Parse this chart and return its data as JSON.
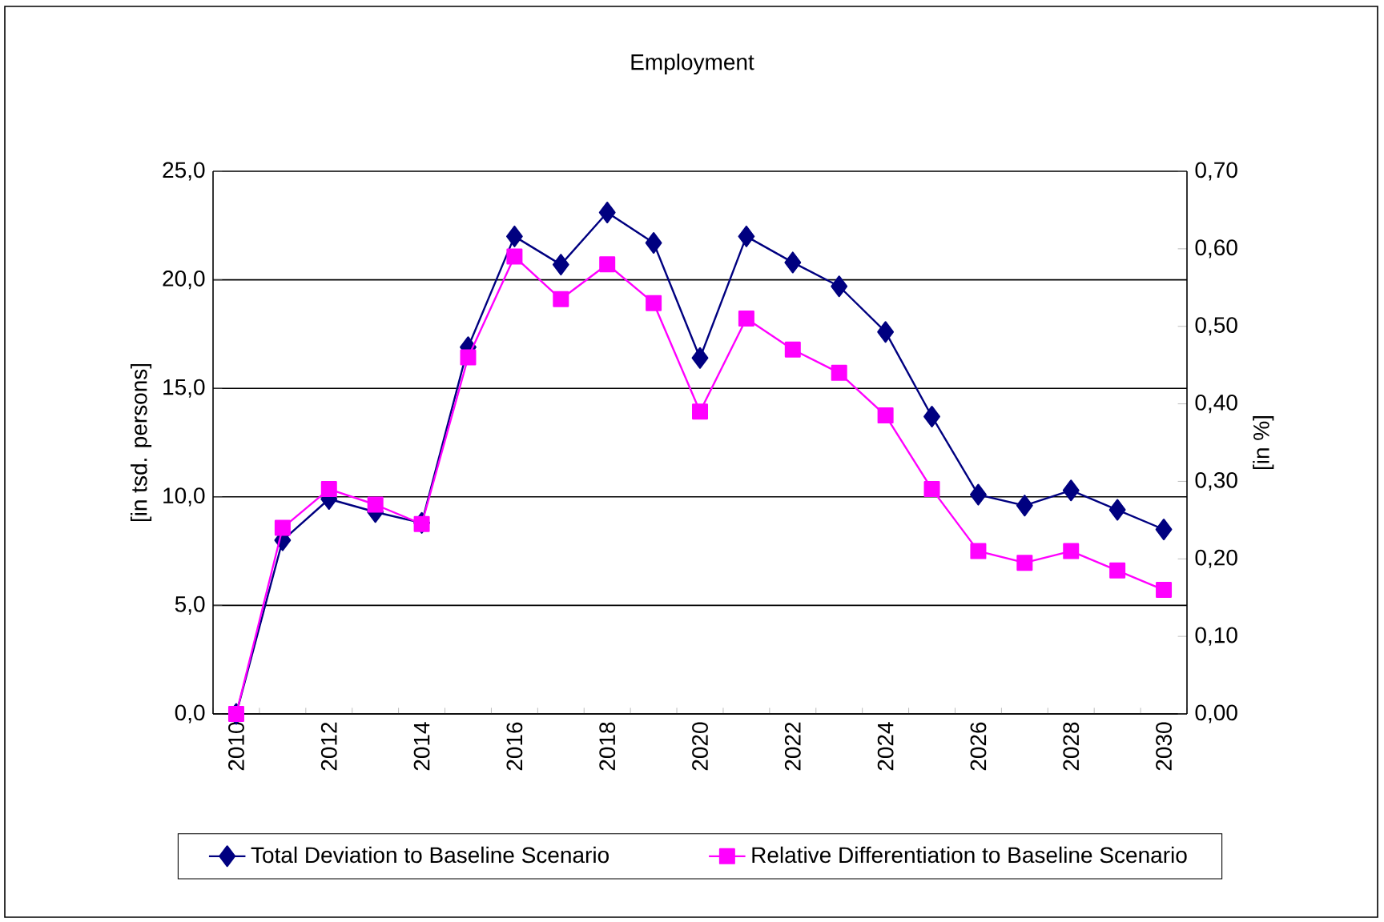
{
  "chart_data": {
    "type": "line",
    "title": "Employment",
    "ylabel": "[in tsd. persons]",
    "y2label": "[in %]",
    "categories": [
      "2010",
      null,
      "2012",
      null,
      "2014",
      null,
      "2016",
      null,
      "2018",
      null,
      "2020",
      null,
      "2022",
      null,
      "2024",
      null,
      "2026",
      null,
      "2028",
      null,
      "2030"
    ],
    "series": [
      {
        "name": "Total Deviation to Baseline Scenario",
        "color": "#000080",
        "marker": "diamond",
        "values": [
          0,
          8.0,
          9.9,
          9.3,
          8.8,
          16.9,
          22.0,
          20.7,
          23.1,
          21.7,
          16.4,
          22.0,
          20.8,
          19.7,
          17.6,
          13.7,
          10.1,
          9.6,
          10.3,
          9.4,
          8.5
        ]
      },
      {
        "name": "Relative Differentiation to Baseline Scenario",
        "color": "#ff00ff",
        "marker": "square",
        "axis": "y2",
        "values": [
          0,
          0.24,
          0.29,
          0.27,
          0.245,
          0.46,
          0.59,
          0.535,
          0.58,
          0.53,
          0.39,
          0.51,
          0.47,
          0.44,
          0.385,
          0.29,
          0.21,
          0.195,
          0.21,
          0.185,
          0.16
        ]
      }
    ],
    "ylim": [
      0,
      25
    ],
    "yticks": [
      {
        "value": 0,
        "label": "0,0"
      },
      {
        "value": 5,
        "label": "5,0"
      },
      {
        "value": 10,
        "label": "10,0"
      },
      {
        "value": 15,
        "label": "15,0"
      },
      {
        "value": 20,
        "label": "20,0"
      },
      {
        "value": 25,
        "label": "25,0"
      }
    ],
    "y2lim": [
      0,
      0.7
    ],
    "y2ticks": [
      {
        "value": 0,
        "label": "0,00"
      },
      {
        "value": 0.1,
        "label": "0,10"
      },
      {
        "value": 0.2,
        "label": "0,20"
      },
      {
        "value": 0.3,
        "label": "0,30"
      },
      {
        "value": 0.4,
        "label": "0,40"
      },
      {
        "value": 0.5,
        "label": "0,50"
      },
      {
        "value": 0.6,
        "label": "0,60"
      },
      {
        "value": 0.7,
        "label": "0,70"
      }
    ],
    "grid": "y",
    "legend": "bottom",
    "line_style": "solid"
  }
}
